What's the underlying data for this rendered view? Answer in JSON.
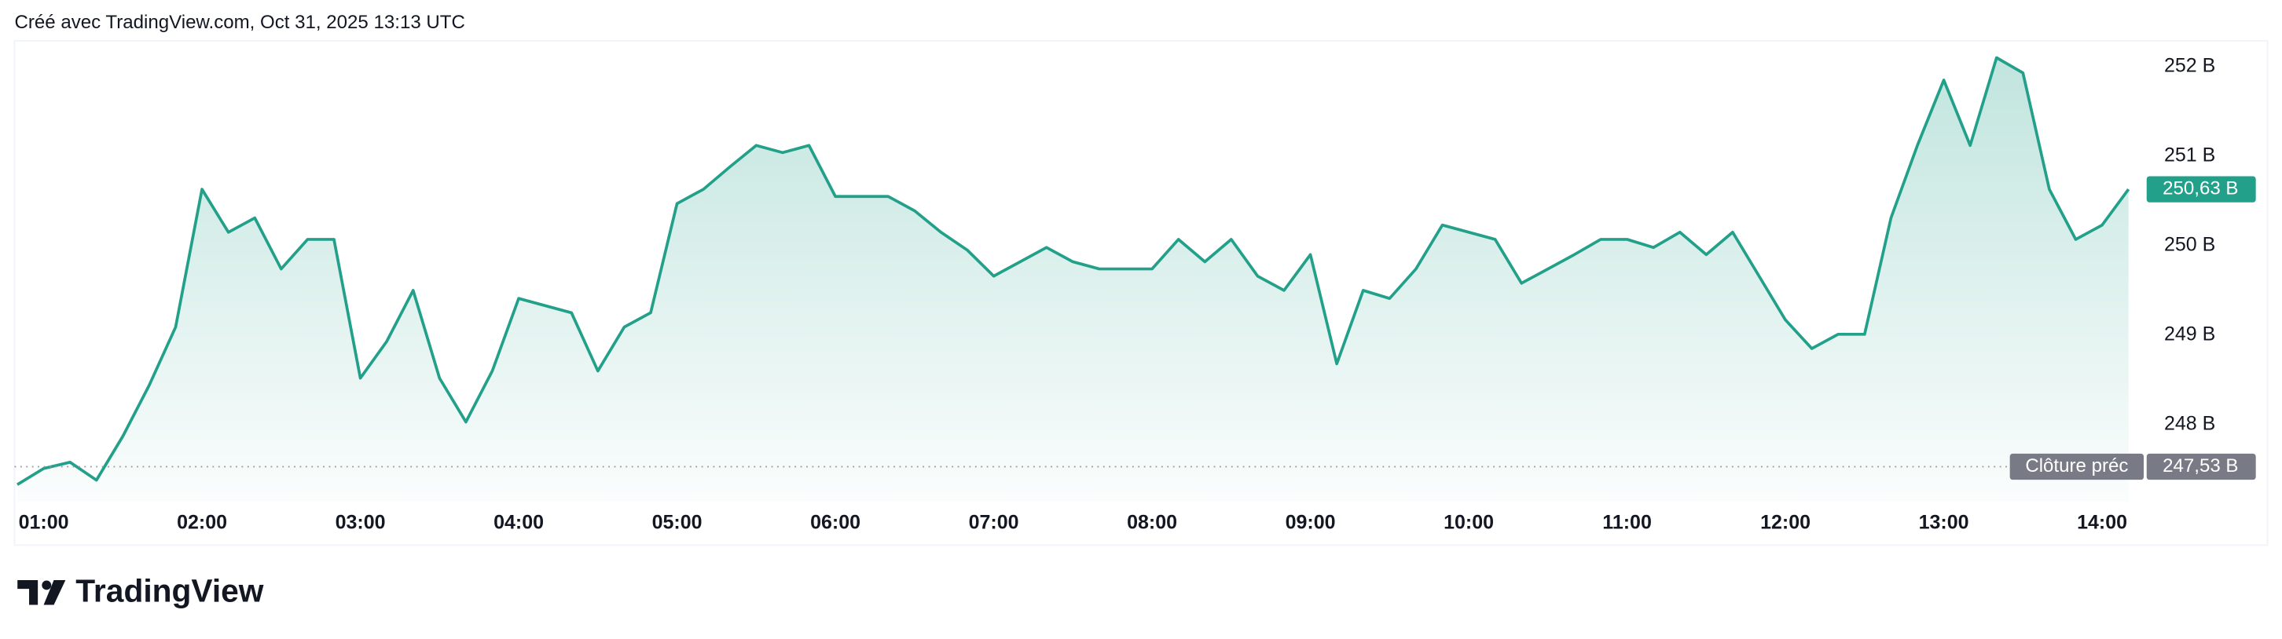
{
  "header": "Créé avec TradingView.com, Oct 31, 2025 13:13 UTC",
  "logo": "TradingView",
  "chart_data": {
    "type": "area",
    "x": [
      "00:50",
      "01:00",
      "01:10",
      "01:20",
      "01:30",
      "01:40",
      "01:50",
      "02:00",
      "02:10",
      "02:20",
      "02:30",
      "02:40",
      "02:50",
      "03:00",
      "03:10",
      "03:20",
      "03:30",
      "03:40",
      "03:50",
      "04:00",
      "04:10",
      "04:20",
      "04:30",
      "04:40",
      "04:50",
      "05:00",
      "05:10",
      "05:20",
      "05:30",
      "05:40",
      "05:50",
      "06:00",
      "06:10",
      "06:20",
      "06:30",
      "06:40",
      "06:50",
      "07:00",
      "07:10",
      "07:20",
      "07:30",
      "07:40",
      "07:50",
      "08:00",
      "08:10",
      "08:20",
      "08:30",
      "08:40",
      "08:50",
      "09:00",
      "09:10",
      "09:20",
      "09:30",
      "09:40",
      "09:50",
      "10:00",
      "10:10",
      "10:20",
      "10:30",
      "10:40",
      "10:50",
      "11:00",
      "11:10",
      "11:20",
      "11:30",
      "11:40",
      "11:50",
      "12:00",
      "12:10",
      "12:20",
      "12:30",
      "12:40",
      "12:50",
      "13:00",
      "13:10",
      "13:20",
      "13:30",
      "13:40",
      "13:50",
      "14:00",
      "14:10"
    ],
    "values": [
      247.33,
      247.51,
      247.58,
      247.38,
      247.87,
      248.44,
      249.09,
      250.63,
      250.15,
      250.31,
      249.74,
      250.07,
      250.07,
      248.52,
      248.93,
      249.5,
      248.52,
      248.03,
      248.6,
      249.41,
      249.33,
      249.25,
      248.6,
      249.09,
      249.25,
      250.47,
      250.63,
      250.88,
      251.12,
      251.04,
      251.12,
      250.55,
      250.55,
      250.55,
      250.39,
      250.15,
      249.95,
      249.66,
      249.82,
      249.98,
      249.82,
      249.74,
      249.74,
      249.74,
      250.07,
      249.82,
      250.07,
      249.66,
      249.5,
      249.9,
      248.68,
      249.5,
      249.41,
      249.74,
      250.23,
      250.15,
      250.07,
      249.58,
      249.74,
      249.9,
      250.07,
      250.07,
      249.98,
      250.15,
      249.9,
      250.15,
      249.66,
      249.17,
      248.85,
      249.01,
      249.01,
      250.31,
      251.12,
      251.85,
      251.12,
      252.1,
      251.93,
      250.63,
      250.07,
      250.23,
      250.63
    ],
    "color": "#22a08a",
    "xticks": [
      "01:00",
      "02:00",
      "03:00",
      "04:00",
      "05:00",
      "06:00",
      "07:00",
      "08:00",
      "09:00",
      "10:00",
      "11:00",
      "12:00",
      "13:00",
      "14:00"
    ],
    "ylim": [
      247.14,
      252.29
    ],
    "yticks": [
      {
        "value": 248,
        "label": "248 B"
      },
      {
        "value": 249,
        "label": "249 B"
      },
      {
        "value": 250,
        "label": "250 B"
      },
      {
        "value": 251,
        "label": "251 B"
      },
      {
        "value": 252,
        "label": "252 B"
      }
    ],
    "last_value": 250.63,
    "last_value_label": "250,63 B",
    "reference": {
      "name": "Clôture préc",
      "value": 247.53,
      "label": "247,53 B"
    }
  }
}
